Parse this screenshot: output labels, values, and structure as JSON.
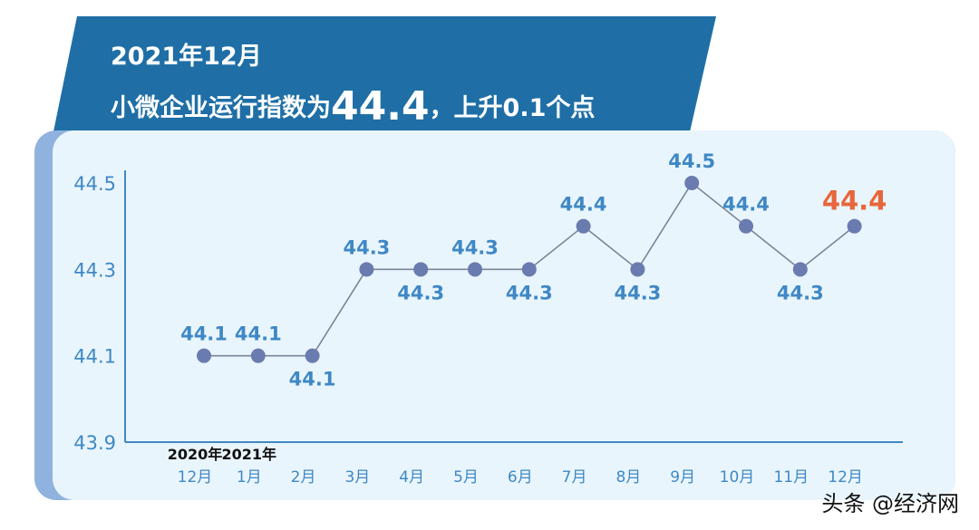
{
  "header": {
    "title_line1": "2021年12月",
    "title_line2_prefix": "小微企业运行指数为",
    "title_line2_value": "44.4",
    "title_line2_suffix": "，上升0.1个点"
  },
  "colors": {
    "banner": "#1f6fa6",
    "panel": "#e9f5fc",
    "panel_edge": "#8fb3de",
    "line": "#7a8598",
    "point": "#6a7bb0",
    "label": "#3f88c5",
    "highlight": "#e8663c",
    "axis": "#3f88c5"
  },
  "chart_data": {
    "type": "line",
    "ylim": [
      43.9,
      44.5
    ],
    "y_ticks": [
      "43.9",
      "44.1",
      "44.3",
      "44.5"
    ],
    "categories": [
      "12月",
      "1月",
      "2月",
      "3月",
      "4月",
      "5月",
      "6月",
      "7月",
      "8月",
      "9月",
      "10月",
      "11月",
      "12月"
    ],
    "year_labels": [
      {
        "index": 0,
        "text": "2020年"
      },
      {
        "index": 1,
        "text": "2021年"
      }
    ],
    "series": [
      {
        "values": [
          44.1,
          44.1,
          44.1,
          44.3,
          44.3,
          44.3,
          44.3,
          44.4,
          44.3,
          44.5,
          44.4,
          44.3,
          44.4
        ],
        "data_labels": [
          "44.1",
          "44.1",
          "44.1",
          "44.3",
          "44.3",
          "44.3",
          "44.3",
          "44.4",
          "44.3",
          "44.5",
          "44.4",
          "44.3",
          "44.4"
        ],
        "label_position": [
          "above",
          "above",
          "below",
          "above",
          "below",
          "above",
          "below",
          "above",
          "below",
          "above",
          "above",
          "below",
          "above"
        ],
        "highlight_index": 12
      }
    ]
  },
  "watermark": {
    "text": "头条 @经济网"
  }
}
